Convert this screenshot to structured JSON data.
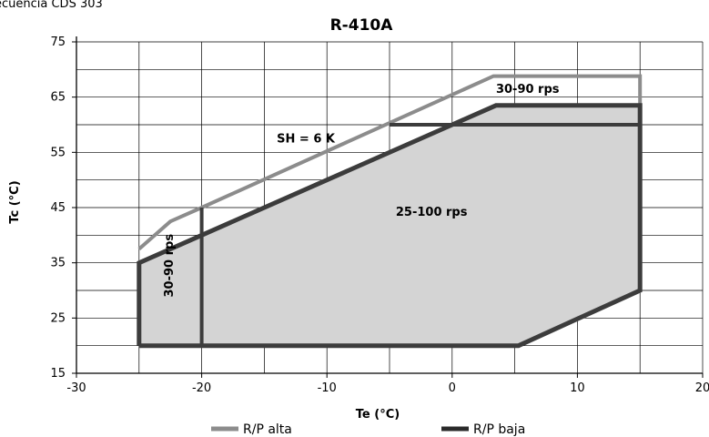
{
  "header_text": "ecuencia CDS 303",
  "chart_data": {
    "type": "line",
    "title": "R-410A",
    "xlabel": "Te (°C)",
    "ylabel": "Tc (°C)",
    "xlim": [
      -30,
      20
    ],
    "ylim": [
      15,
      75
    ],
    "xticks": [
      -30,
      -20,
      -10,
      0,
      10,
      20
    ],
    "yticks": [
      15,
      25,
      35,
      45,
      55,
      65,
      75
    ],
    "grid": true,
    "legend_position": "bottom",
    "series": [
      {
        "name": "R/P alta",
        "color": "#8c8c8c",
        "points": [
          [
            -25,
            37.5
          ],
          [
            -22.5,
            42.5
          ],
          [
            -20,
            45
          ],
          [
            3.3,
            68.8
          ],
          [
            15,
            68.8
          ],
          [
            15,
            63.5
          ]
        ]
      },
      {
        "name": "R/P baja",
        "color": "#3c3c3c",
        "points": [
          [
            -25,
            20
          ],
          [
            -25,
            35
          ],
          [
            0,
            60
          ],
          [
            3.5,
            63.5
          ],
          [
            15,
            63.5
          ],
          [
            15,
            30
          ],
          [
            5.3,
            20
          ],
          [
            -25,
            20
          ]
        ]
      }
    ],
    "region_lines": [
      {
        "name": "divider-minus20",
        "points": [
          [
            -20,
            20
          ],
          [
            -20,
            45
          ]
        ]
      },
      {
        "name": "divider-top",
        "points": [
          [
            -5,
            60
          ],
          [
            15,
            60
          ]
        ]
      }
    ],
    "annotations": [
      {
        "text": "30-90 rps",
        "x": 3.5,
        "y": 65.8,
        "rotate": 0
      },
      {
        "text": "SH = 6 K",
        "x": -14,
        "y": 56.8,
        "rotate": 0
      },
      {
        "text": "25-100 rps",
        "x": -4.5,
        "y": 43.5,
        "rotate": 0
      },
      {
        "text": "30-90 rps",
        "x": -22.3,
        "y": 34.5,
        "rotate": -90
      }
    ]
  }
}
